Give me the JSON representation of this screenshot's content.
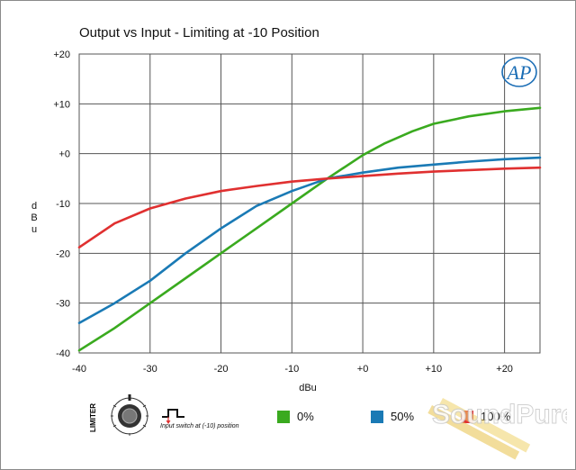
{
  "title": "Output vs Input - Limiting at -10 Position",
  "logo_text": "AP",
  "watermark_text": "SoundPure",
  "legend": {
    "items": [
      {
        "label": "0%",
        "color": "#3aaa1f"
      },
      {
        "label": "50%",
        "color": "#1a7ab5"
      },
      {
        "label": "100%",
        "color": "#e03030"
      }
    ],
    "switch_caption": "Input switch at (-10) position",
    "limiter_label": "LIMITER"
  },
  "chart_data": {
    "type": "line",
    "title": "Output vs Input - Limiting at -10 Position",
    "xlabel": "dBu",
    "ylabel": "dBu",
    "xlim": [
      -40,
      25
    ],
    "ylim": [
      -40,
      20
    ],
    "xticks": [
      -40,
      -30,
      -20,
      -10,
      0,
      10,
      20
    ],
    "xtick_labels": [
      "-40",
      "-30",
      "-20",
      "-10",
      "+0",
      "+10",
      "+20"
    ],
    "yticks": [
      -40,
      -30,
      -20,
      -10,
      0,
      10,
      20
    ],
    "ytick_labels": [
      "-40",
      "-30",
      "-20",
      "-10",
      "+0",
      "+10",
      "+20"
    ],
    "grid": true,
    "series": [
      {
        "name": "0%",
        "color": "#3aaa1f",
        "x": [
          -40,
          -35,
          -30,
          -25,
          -20,
          -15,
          -10,
          -5,
          0,
          3,
          7,
          10,
          15,
          20,
          25
        ],
        "y": [
          -39.5,
          -35,
          -30,
          -25,
          -20,
          -15,
          -10,
          -5,
          -0.3,
          2,
          4.5,
          6,
          7.5,
          8.5,
          9.2
        ]
      },
      {
        "name": "50%",
        "color": "#1a7ab5",
        "x": [
          -40,
          -35,
          -30,
          -25,
          -20,
          -15,
          -10,
          -5,
          0,
          5,
          10,
          15,
          20,
          25
        ],
        "y": [
          -34,
          -30,
          -25.5,
          -20,
          -15,
          -10.5,
          -7.5,
          -5,
          -3.8,
          -2.8,
          -2.2,
          -1.6,
          -1.1,
          -0.8
        ]
      },
      {
        "name": "100%",
        "color": "#e03030",
        "x": [
          -40,
          -35,
          -30,
          -25,
          -20,
          -15,
          -10,
          -5,
          0,
          5,
          10,
          15,
          20,
          25
        ],
        "y": [
          -18.8,
          -14,
          -11,
          -9,
          -7.5,
          -6.5,
          -5.6,
          -5,
          -4.5,
          -4,
          -3.6,
          -3.3,
          -3,
          -2.8
        ]
      }
    ]
  }
}
